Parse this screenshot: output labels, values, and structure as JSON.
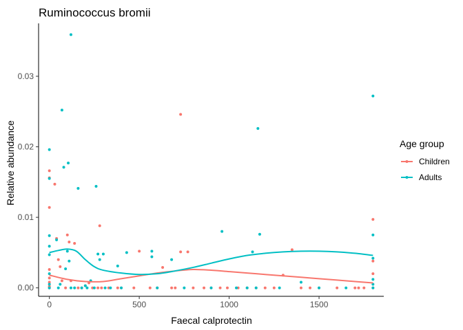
{
  "chart_data": {
    "type": "scatter",
    "title": "Ruminococcus bromii",
    "xlabel": "Faecal calprotectin",
    "ylabel": "Relative abundance",
    "xlim": [
      -60,
      1860
    ],
    "ylim": [
      -0.0012,
      0.0375
    ],
    "x_ticks": [
      0,
      500,
      1000,
      1500
    ],
    "x_tick_labels": [
      "0",
      "500",
      "1000",
      "1500"
    ],
    "y_ticks": [
      0,
      0.01,
      0.02,
      0.03
    ],
    "y_tick_labels": [
      "0.00",
      "0.01",
      "0.02",
      "0.03"
    ],
    "grid": false,
    "legend": {
      "title": "Age group",
      "position": "right"
    },
    "series": [
      {
        "name": "Children",
        "color": "#F8766D",
        "points": [
          [
            0,
            0.0166
          ],
          [
            0,
            0.0156
          ],
          [
            0,
            0.0114
          ],
          [
            0,
            0.0026
          ],
          [
            0,
            0.0014
          ],
          [
            0,
            0.0008
          ],
          [
            0,
            0.0002
          ],
          [
            0,
            0.0
          ],
          [
            30,
            0.0147
          ],
          [
            40,
            0.007
          ],
          [
            50,
            0.004
          ],
          [
            60,
            0.003
          ],
          [
            70,
            0.001
          ],
          [
            90,
            0.0
          ],
          [
            100,
            0.0075
          ],
          [
            110,
            0.0065
          ],
          [
            120,
            0.001
          ],
          [
            140,
            0.0063
          ],
          [
            160,
            0.0
          ],
          [
            180,
            0.0
          ],
          [
            200,
            0.0003
          ],
          [
            220,
            0.0007
          ],
          [
            240,
            0.0
          ],
          [
            270,
            0.0
          ],
          [
            280,
            0.0088
          ],
          [
            290,
            0.0
          ],
          [
            330,
            0.0
          ],
          [
            380,
            0.0
          ],
          [
            400,
            0.0
          ],
          [
            470,
            0.0
          ],
          [
            500,
            0.0052
          ],
          [
            560,
            0.0
          ],
          [
            600,
            0.0
          ],
          [
            630,
            0.0029
          ],
          [
            680,
            0.0
          ],
          [
            700,
            0.0
          ],
          [
            730,
            0.0246
          ],
          [
            730,
            0.0051
          ],
          [
            770,
            0.0051
          ],
          [
            800,
            0.0
          ],
          [
            860,
            0.0
          ],
          [
            900,
            0.0
          ],
          [
            950,
            0.0
          ],
          [
            990,
            0.0
          ],
          [
            1050,
            0.0
          ],
          [
            1100,
            0.0
          ],
          [
            1150,
            0.0
          ],
          [
            1200,
            0.0
          ],
          [
            1250,
            0.0
          ],
          [
            1300,
            0.0018
          ],
          [
            1350,
            0.0054
          ],
          [
            1400,
            0.0
          ],
          [
            1450,
            0.0
          ],
          [
            1500,
            0.0
          ],
          [
            1600,
            0.0
          ],
          [
            1700,
            0.0
          ],
          [
            1720,
            0.0
          ],
          [
            1750,
            0.0
          ],
          [
            1800,
            0.0097
          ],
          [
            1800,
            0.0038
          ],
          [
            1800,
            0.002
          ],
          [
            1800,
            0.0
          ]
        ],
        "smooth": [
          [
            0,
            0.0018
          ],
          [
            100,
            0.0012
          ],
          [
            200,
            0.0009
          ],
          [
            300,
            0.0009
          ],
          [
            400,
            0.0013
          ],
          [
            500,
            0.0017
          ],
          [
            600,
            0.0021
          ],
          [
            700,
            0.0024
          ],
          [
            800,
            0.0026
          ],
          [
            900,
            0.0025
          ],
          [
            1000,
            0.0023
          ],
          [
            1100,
            0.0021
          ],
          [
            1200,
            0.0019
          ],
          [
            1300,
            0.0017
          ],
          [
            1400,
            0.0015
          ],
          [
            1500,
            0.0013
          ],
          [
            1600,
            0.0011
          ],
          [
            1700,
            0.0009
          ],
          [
            1800,
            0.0007
          ]
        ]
      },
      {
        "name": "Adults",
        "color": "#00BFC4",
        "points": [
          [
            0,
            0.0196
          ],
          [
            0,
            0.0155
          ],
          [
            0,
            0.0074
          ],
          [
            0,
            0.0059
          ],
          [
            0,
            0.0047
          ],
          [
            0,
            0.002
          ],
          [
            0,
            0.0005
          ],
          [
            0,
            0.0
          ],
          [
            40,
            0.0068
          ],
          [
            50,
            0.0
          ],
          [
            60,
            0.0005
          ],
          [
            70,
            0.0252
          ],
          [
            80,
            0.0171
          ],
          [
            90,
            0.0027
          ],
          [
            100,
            0.0052
          ],
          [
            105,
            0.0177
          ],
          [
            110,
            0.0038
          ],
          [
            120,
            0.0359
          ],
          [
            120,
            0.0
          ],
          [
            140,
            0.0
          ],
          [
            160,
            0.0141
          ],
          [
            180,
            0.0
          ],
          [
            200,
            0.0003
          ],
          [
            210,
            0.0
          ],
          [
            230,
            0.001
          ],
          [
            250,
            0.0
          ],
          [
            260,
            0.0144
          ],
          [
            270,
            0.0048
          ],
          [
            280,
            0.004
          ],
          [
            300,
            0.0048
          ],
          [
            310,
            0.0
          ],
          [
            340,
            0.0
          ],
          [
            380,
            0.0031
          ],
          [
            400,
            0.0
          ],
          [
            430,
            0.005
          ],
          [
            570,
            0.0052
          ],
          [
            570,
            0.0044
          ],
          [
            600,
            0.0
          ],
          [
            680,
            0.004
          ],
          [
            750,
            0.0
          ],
          [
            900,
            0.0
          ],
          [
            960,
            0.008
          ],
          [
            1040,
            0.0
          ],
          [
            1100,
            0.0
          ],
          [
            1130,
            0.0051
          ],
          [
            1150,
            0.0
          ],
          [
            1160,
            0.0226
          ],
          [
            1170,
            0.0076
          ],
          [
            1280,
            0.0
          ],
          [
            1400,
            0.0008
          ],
          [
            1500,
            0.0
          ],
          [
            1650,
            0.0
          ],
          [
            1800,
            0.0272
          ],
          [
            1800,
            0.0075
          ],
          [
            1800,
            0.0042
          ],
          [
            1800,
            0.0012
          ],
          [
            1800,
            0.0005
          ],
          [
            1800,
            0.0
          ]
        ],
        "smooth": [
          [
            0,
            0.005
          ],
          [
            50,
            0.0053
          ],
          [
            100,
            0.0055
          ],
          [
            150,
            0.0052
          ],
          [
            200,
            0.004
          ],
          [
            250,
            0.003
          ],
          [
            300,
            0.0025
          ],
          [
            400,
            0.0021
          ],
          [
            500,
            0.0019
          ],
          [
            600,
            0.002
          ],
          [
            700,
            0.0024
          ],
          [
            800,
            0.0029
          ],
          [
            900,
            0.0035
          ],
          [
            1000,
            0.0041
          ],
          [
            1100,
            0.0046
          ],
          [
            1200,
            0.0049
          ],
          [
            1300,
            0.0051
          ],
          [
            1400,
            0.0052
          ],
          [
            1500,
            0.0052
          ],
          [
            1600,
            0.0051
          ],
          [
            1700,
            0.0049
          ],
          [
            1800,
            0.0046
          ]
        ]
      }
    ]
  }
}
